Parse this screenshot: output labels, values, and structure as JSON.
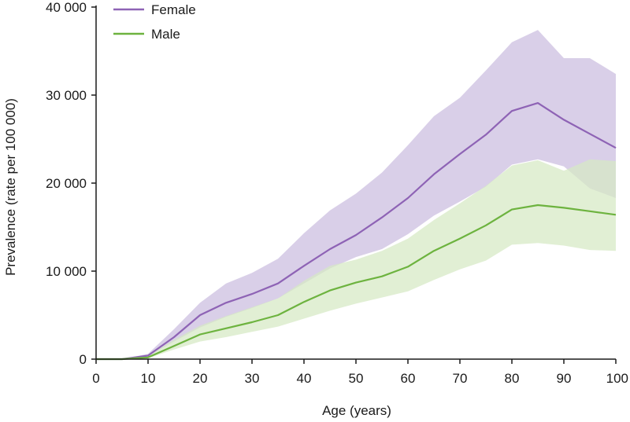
{
  "chart_data": {
    "type": "line",
    "title": "",
    "xlabel": "Age (years)",
    "ylabel": "Prevalence (rate per 100 000)",
    "xlim": [
      0,
      100
    ],
    "ylim": [
      0,
      40000
    ],
    "x_ticks": [
      0,
      10,
      20,
      30,
      40,
      50,
      60,
      70,
      80,
      90,
      100
    ],
    "x_tick_labels": [
      "0",
      "10",
      "20",
      "30",
      "40",
      "50",
      "60",
      "70",
      "80",
      "90",
      "100"
    ],
    "y_ticks": [
      0,
      10000,
      20000,
      30000,
      40000
    ],
    "y_tick_labels": [
      "0",
      "10 000",
      "20 000",
      "30 000",
      "40 000"
    ],
    "grid": false,
    "legend_position": "top-left",
    "x": [
      0,
      5,
      10,
      15,
      20,
      25,
      30,
      35,
      40,
      45,
      50,
      55,
      60,
      65,
      70,
      75,
      80,
      85,
      90,
      95,
      100
    ],
    "series": [
      {
        "name": "Female",
        "color": "#8e63b5",
        "band_color": "#d9cfe8",
        "values": [
          0,
          0,
          400,
          2500,
          5000,
          6400,
          7400,
          8600,
          10600,
          12500,
          14100,
          16100,
          18300,
          21000,
          23300,
          25500,
          28200,
          29100,
          27200,
          25600,
          24000
        ],
        "lower": [
          0,
          0,
          300,
          2000,
          3600,
          4800,
          5800,
          6900,
          8600,
          10300,
          11600,
          12500,
          14200,
          16300,
          17900,
          19600,
          22100,
          22700,
          21900,
          19400,
          18300
        ],
        "upper": [
          0,
          0,
          600,
          3400,
          6400,
          8600,
          9800,
          11400,
          14300,
          16900,
          18800,
          21200,
          24300,
          27600,
          29700,
          32800,
          36000,
          37400,
          34200,
          34200,
          32400
        ]
      },
      {
        "name": "Male",
        "color": "#6db33f",
        "band_color": "#d6e9c4",
        "values": [
          0,
          0,
          200,
          1500,
          2800,
          3500,
          4200,
          5000,
          6500,
          7800,
          8700,
          9400,
          10500,
          12300,
          13700,
          15200,
          17000,
          17500,
          17200,
          16800,
          16400
        ],
        "lower": [
          0,
          0,
          100,
          1100,
          2000,
          2500,
          3100,
          3700,
          4600,
          5500,
          6300,
          7000,
          7700,
          9000,
          10200,
          11200,
          13000,
          13200,
          12900,
          12400,
          12300
        ],
        "upper": [
          0,
          0,
          400,
          2200,
          3800,
          4900,
          5900,
          6900,
          8900,
          10600,
          11300,
          12300,
          13700,
          15800,
          17700,
          19700,
          22000,
          22600,
          21400,
          22700,
          22500
        ]
      }
    ]
  }
}
